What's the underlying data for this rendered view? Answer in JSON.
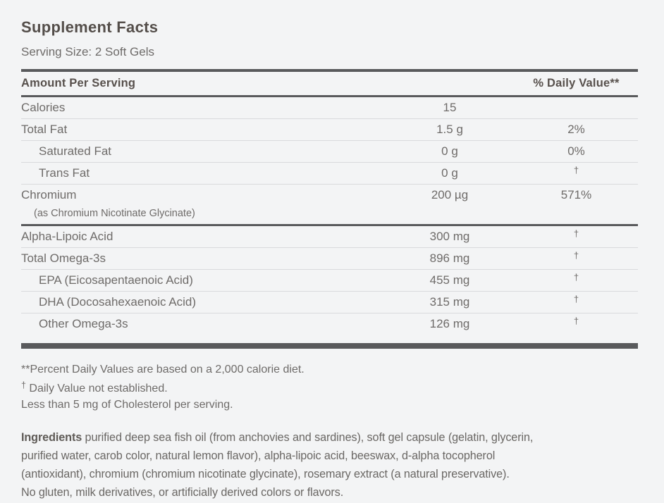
{
  "title": "Supplement Facts",
  "serving_size": "Serving Size: 2 Soft Gels",
  "colors": {
    "background": "#f3f4f5",
    "heading_text": "#544e4a",
    "body_text": "#6e6b69",
    "thick_rule": "#595a5c",
    "thin_rule": "#d9dadc"
  },
  "table": {
    "header_left": "Amount Per Serving",
    "header_right": "% Daily Value**",
    "rows": [
      {
        "name": "Calories",
        "sub": "",
        "amount": "15",
        "dv": "",
        "indent": 0,
        "divider": "thin"
      },
      {
        "name": "Total Fat",
        "sub": "",
        "amount": "1.5 g",
        "dv": "2%",
        "indent": 0,
        "divider": "thin"
      },
      {
        "name": "Saturated Fat",
        "sub": "",
        "amount": "0 g",
        "dv": "0%",
        "indent": 1,
        "divider": "thin"
      },
      {
        "name": "Trans Fat",
        "sub": "",
        "amount": "0 g",
        "dv": "†",
        "indent": 1,
        "divider": "thin"
      },
      {
        "name": "Chromium",
        "sub": "(as Chromium Nicotinate Glycinate)",
        "amount": "200 µg",
        "dv": "571%",
        "indent": 0,
        "divider": "mid"
      },
      {
        "name": "Alpha-Lipoic Acid",
        "sub": "",
        "amount": "300 mg",
        "dv": "†",
        "indent": 0,
        "divider": "thin"
      },
      {
        "name": "Total Omega-3s",
        "sub": "",
        "amount": "896 mg",
        "dv": "†",
        "indent": 0,
        "divider": "thin"
      },
      {
        "name": "EPA (Eicosapentaenoic Acid)",
        "sub": "",
        "amount": "455 mg",
        "dv": "†",
        "indent": 1,
        "divider": "thin"
      },
      {
        "name": "DHA (Docosahexaenoic Acid)",
        "sub": "",
        "amount": "315 mg",
        "dv": "†",
        "indent": 1,
        "divider": "thin"
      },
      {
        "name": "Other Omega-3s",
        "sub": "",
        "amount": "126 mg",
        "dv": "†",
        "indent": 1,
        "divider": "none"
      }
    ]
  },
  "footnotes": [
    {
      "sup": "",
      "text": "**Percent Daily Values are based on a 2,000 calorie diet."
    },
    {
      "sup": "†",
      "text": " Daily Value not established."
    },
    {
      "sup": "",
      "text": "Less than 5 mg of Cholesterol per serving."
    }
  ],
  "ingredients": {
    "label": "Ingredients",
    "lines": [
      " purified deep sea fish oil (from anchovies and sardines), soft gel capsule (gelatin, glycerin,",
      "purified water, carob color, natural lemon flavor), alpha-lipoic acid, beeswax, d-alpha tocopherol",
      "(antioxidant), chromium (chromium nicotinate glycinate), rosemary extract (a natural preservative).",
      "No gluten, milk derivatives, or artificially derived colors or flavors."
    ]
  }
}
